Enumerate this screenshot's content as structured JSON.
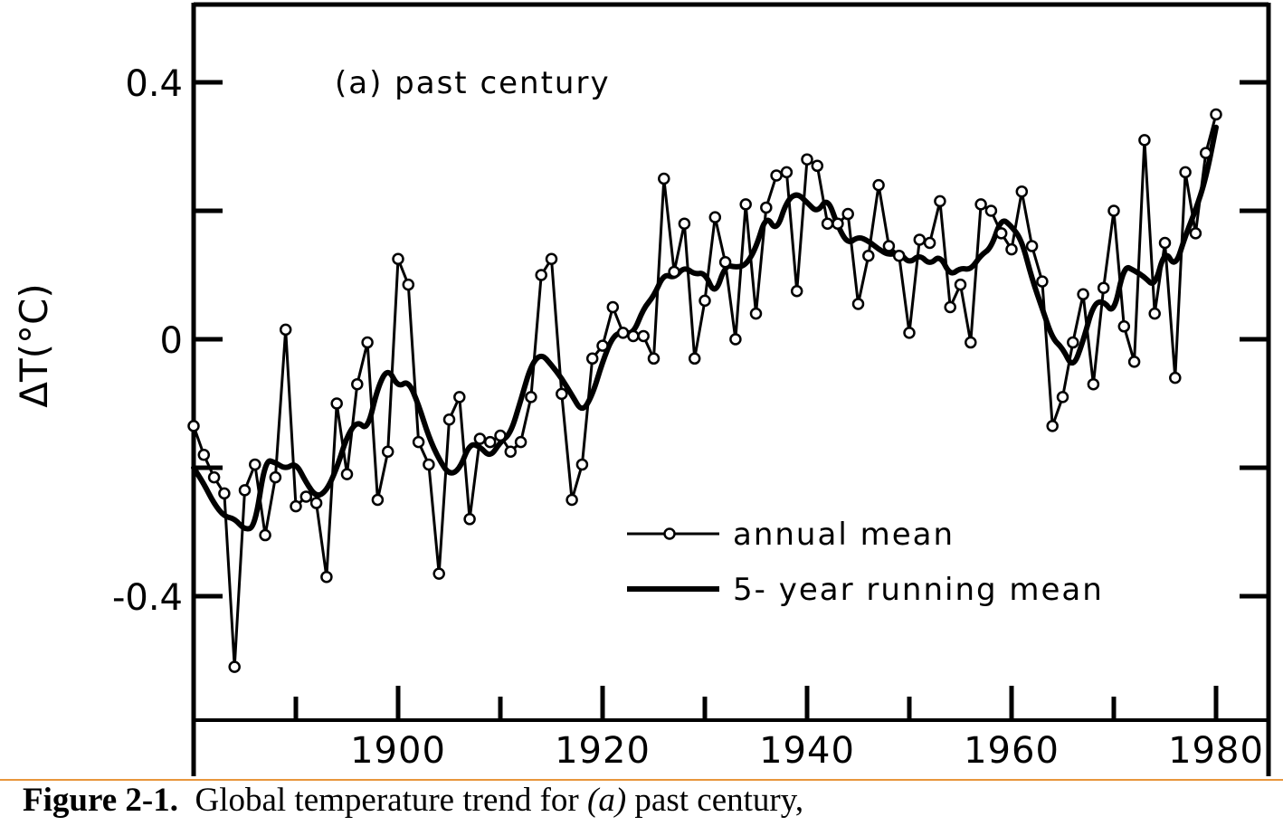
{
  "chart_data": {
    "type": "line",
    "title": "(a) past century",
    "xlabel": "",
    "ylabel": "ΔT(°C)",
    "xlim": [
      1880,
      1983
    ],
    "ylim": [
      -0.58,
      0.52
    ],
    "x_ticks_major": [
      1900,
      1920,
      1940,
      1960,
      1980
    ],
    "x_ticks_minor": [
      1890,
      1910,
      1930,
      1950,
      1970
    ],
    "x_tick_labels": [
      "1900",
      "1920",
      "1940",
      "1960",
      "1980"
    ],
    "y_ticks": [
      0.4,
      0.2,
      0,
      -0.2,
      -0.4
    ],
    "y_tick_labels": [
      {
        "value": 0.4,
        "label": "0.4"
      },
      {
        "value": 0,
        "label": "0"
      },
      {
        "value": -0.4,
        "label": "-0.4"
      }
    ],
    "grid": false,
    "legend_placement": "bottom-right",
    "legend": [
      {
        "label": "annual mean",
        "style": "thin-line-circles"
      },
      {
        "label": "5- year running mean",
        "style": "thick-line"
      }
    ],
    "x": [
      1880,
      1881,
      1882,
      1883,
      1884,
      1885,
      1886,
      1887,
      1888,
      1889,
      1890,
      1891,
      1892,
      1893,
      1894,
      1895,
      1896,
      1897,
      1898,
      1899,
      1900,
      1901,
      1902,
      1903,
      1904,
      1905,
      1906,
      1907,
      1908,
      1909,
      1910,
      1911,
      1912,
      1913,
      1914,
      1915,
      1916,
      1917,
      1918,
      1919,
      1920,
      1921,
      1922,
      1923,
      1924,
      1925,
      1926,
      1927,
      1928,
      1929,
      1930,
      1931,
      1932,
      1933,
      1934,
      1935,
      1936,
      1937,
      1938,
      1939,
      1940,
      1941,
      1942,
      1943,
      1944,
      1945,
      1946,
      1947,
      1948,
      1949,
      1950,
      1951,
      1952,
      1953,
      1954,
      1955,
      1956,
      1957,
      1958,
      1959,
      1960,
      1961,
      1962,
      1963,
      1964,
      1965,
      1966,
      1967,
      1968,
      1969,
      1970,
      1971,
      1972,
      1973,
      1974,
      1975,
      1976,
      1977,
      1978,
      1979,
      1980
    ],
    "series": [
      {
        "name": "annual mean",
        "values": [
          -0.135,
          -0.18,
          -0.215,
          -0.24,
          -0.51,
          -0.235,
          -0.195,
          -0.305,
          -0.215,
          0.015,
          -0.26,
          -0.245,
          -0.255,
          -0.37,
          -0.1,
          -0.21,
          -0.07,
          -0.005,
          -0.25,
          -0.175,
          0.125,
          0.085,
          -0.16,
          -0.195,
          -0.365,
          -0.125,
          -0.09,
          -0.28,
          -0.155,
          -0.16,
          -0.15,
          -0.175,
          -0.16,
          -0.09,
          0.1,
          0.125,
          -0.085,
          -0.25,
          -0.195,
          -0.03,
          -0.01,
          0.05,
          0.01,
          0.005,
          0.005,
          -0.03,
          0.25,
          0.105,
          0.18,
          -0.03,
          0.06,
          0.19,
          0.12,
          0.0,
          0.21,
          0.04,
          0.205,
          0.255,
          0.26,
          0.075,
          0.28,
          0.27,
          0.18,
          0.18,
          0.195,
          0.055,
          0.13,
          0.24,
          0.145,
          0.13,
          0.01,
          0.155,
          0.15,
          0.215,
          0.05,
          0.085,
          -0.005,
          0.21,
          0.2,
          0.165,
          0.14,
          0.23,
          0.145,
          0.09,
          -0.135,
          -0.09,
          -0.005,
          0.07,
          -0.07,
          0.08,
          0.2,
          0.02,
          -0.035,
          0.31,
          0.04,
          0.15,
          -0.06,
          0.26,
          0.165,
          0.29,
          0.35
        ]
      },
      {
        "name": "5- year running mean",
        "values": [
          -0.2,
          -0.225,
          -0.256,
          -0.276,
          -0.279,
          -0.297,
          -0.292,
          -0.187,
          -0.192,
          -0.202,
          -0.192,
          -0.223,
          -0.246,
          -0.236,
          -0.201,
          -0.151,
          -0.127,
          -0.142,
          -0.075,
          -0.044,
          -0.075,
          -0.064,
          -0.102,
          -0.152,
          -0.187,
          -0.211,
          -0.203,
          -0.162,
          -0.167,
          -0.184,
          -0.16,
          -0.147,
          -0.095,
          -0.04,
          -0.022,
          -0.04,
          -0.061,
          -0.087,
          -0.114,
          -0.087,
          -0.035,
          0.005,
          0.012,
          0.008,
          0.048,
          0.067,
          0.102,
          0.095,
          0.113,
          0.101,
          0.104,
          0.068,
          0.116,
          0.112,
          0.115,
          0.142,
          0.194,
          0.167,
          0.215,
          0.228,
          0.213,
          0.197,
          0.221,
          0.176,
          0.148,
          0.16,
          0.153,
          0.14,
          0.131,
          0.136,
          0.118,
          0.132,
          0.116,
          0.131,
          0.099,
          0.111,
          0.108,
          0.131,
          0.142,
          0.189,
          0.176,
          0.154,
          0.094,
          0.048,
          0.001,
          -0.014,
          -0.046,
          -0.003,
          0.055,
          0.06,
          0.039,
          0.115,
          0.107,
          0.097,
          0.081,
          0.14,
          0.111,
          0.161,
          0.201,
          0.25,
          0.33
        ]
      }
    ]
  },
  "caption": {
    "figure_number": "Figure 2-1.",
    "text_before": "  Global temperature trend for ",
    "italic_part": "(a)",
    "text_after": " past century,"
  },
  "colors": {
    "ink": "#000000",
    "separator": "#e8963c",
    "background": "#ffffff"
  }
}
